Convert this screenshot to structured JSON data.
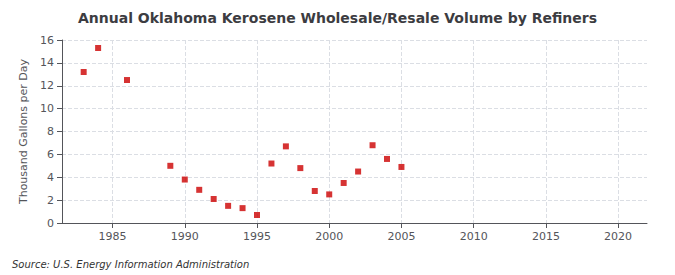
{
  "chart_data": {
    "type": "scatter",
    "title": "Annual Oklahoma Kerosene Wholesale/Resale Volume by Refiners",
    "ylabel": "Thousand Gallons per Day",
    "source": "Source: U.S. Energy Information Administration",
    "color": "#cc0000",
    "marker": "square",
    "grid": true,
    "xlim": [
      1981.5,
      2022
    ],
    "xticks": [
      1985,
      1990,
      1995,
      2000,
      2005,
      2010,
      2015,
      2020
    ],
    "ylim": [
      0,
      16
    ],
    "yticks": [
      0,
      2,
      4,
      6,
      8,
      10,
      12,
      14,
      16
    ],
    "x": [
      1983,
      1984,
      1986,
      1989,
      1990,
      1991,
      1992,
      1993,
      1994,
      1995,
      1996,
      1997,
      1998,
      1999,
      2000,
      2001,
      2002,
      2003,
      2004,
      2005
    ],
    "values": [
      13.2,
      15.3,
      12.5,
      5.0,
      3.8,
      2.9,
      2.1,
      1.5,
      1.3,
      0.7,
      5.2,
      6.7,
      4.8,
      2.8,
      2.5,
      3.5,
      4.5,
      6.8,
      5.6,
      4.9
    ]
  }
}
